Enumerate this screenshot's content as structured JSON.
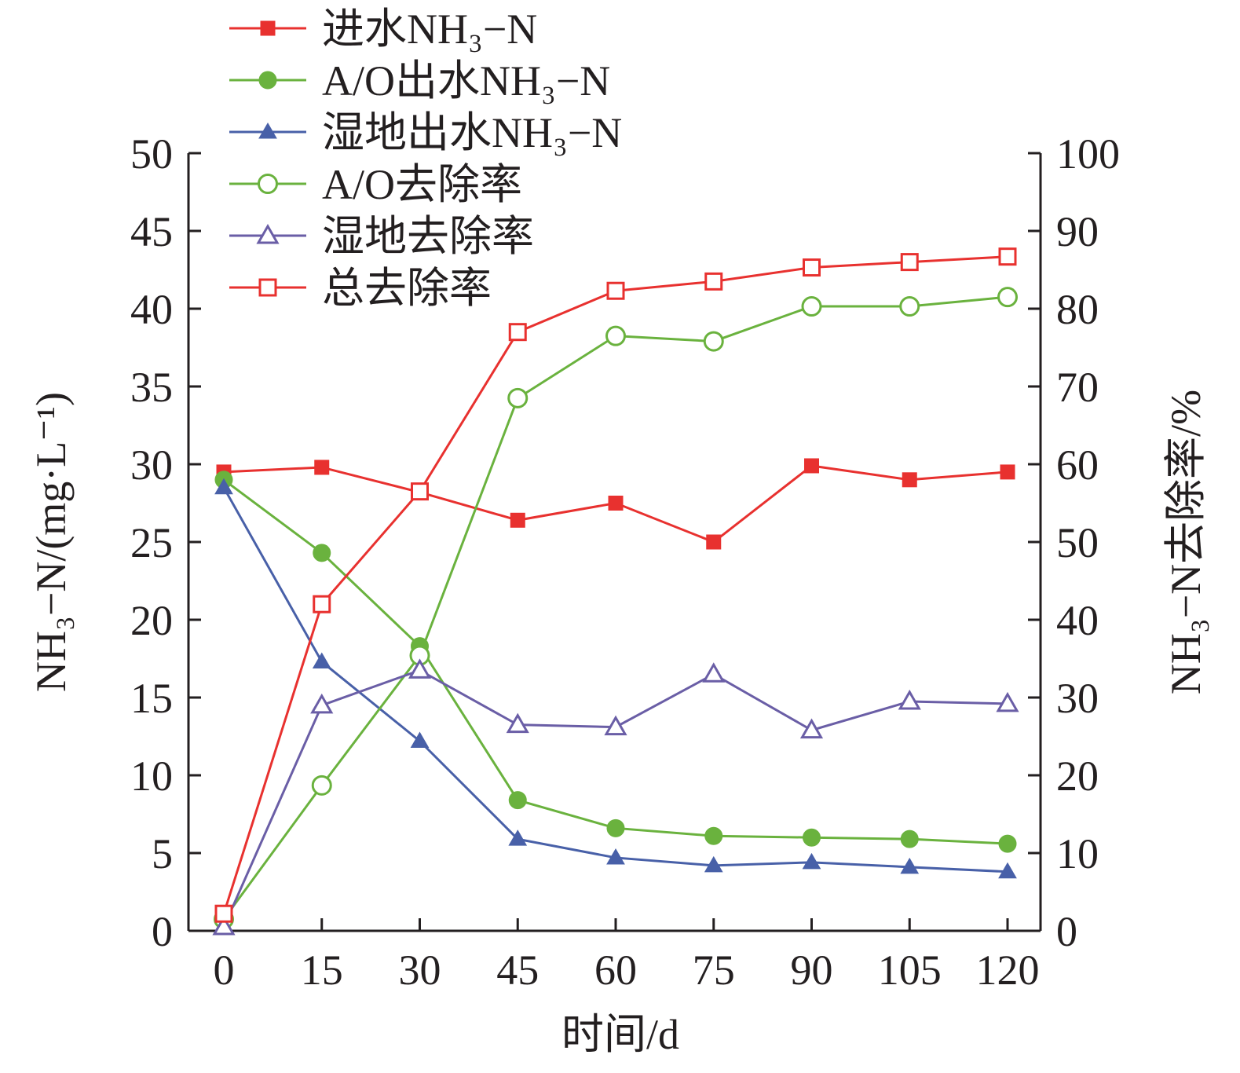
{
  "chart_data": {
    "type": "line",
    "x_label": "时间/d",
    "y_left_label": "NH₃−N/(mg·L⁻¹)",
    "y_right_label": "NH₃−N去除率/%",
    "x": [
      0,
      15,
      30,
      45,
      60,
      75,
      90,
      105,
      120
    ],
    "x_ticks": [
      "0",
      "15",
      "30",
      "45",
      "60",
      "75",
      "90",
      "105",
      "120"
    ],
    "y_left_range": [
      0,
      50
    ],
    "y_left_ticks": [
      "0",
      "5",
      "10",
      "15",
      "20",
      "25",
      "30",
      "35",
      "40",
      "45",
      "50"
    ],
    "y_right_range": [
      0,
      100
    ],
    "y_right_ticks": [
      "0",
      "10",
      "20",
      "30",
      "40",
      "50",
      "60",
      "70",
      "80",
      "90",
      "100"
    ],
    "grid": false,
    "legend_position": "top-left",
    "series": [
      {
        "name": "进水NH₃−N",
        "axis": "left",
        "color": "#e8312f",
        "marker": "square-filled",
        "values": [
          29.5,
          29.8,
          28.2,
          26.4,
          27.5,
          25.0,
          29.9,
          29.0,
          29.5
        ]
      },
      {
        "name": "A/O出水NH₃−N",
        "axis": "left",
        "color": "#6ab23e",
        "marker": "circle-filled",
        "values": [
          29.0,
          24.3,
          18.3,
          8.4,
          6.6,
          6.1,
          6.0,
          5.9,
          5.6
        ]
      },
      {
        "name": "湿地出水NH₃−N",
        "axis": "left",
        "color": "#4860a8",
        "marker": "triangle-filled",
        "values": [
          28.5,
          17.3,
          12.2,
          5.9,
          4.7,
          4.2,
          4.4,
          4.1,
          3.8
        ]
      },
      {
        "name": "A/O去除率",
        "axis": "right",
        "color": "#6ab23e",
        "marker": "circle-open",
        "values": [
          1.5,
          18.7,
          35.4,
          68.5,
          76.5,
          75.8,
          80.3,
          80.3,
          81.5
        ]
      },
      {
        "name": "湿地去除率",
        "axis": "right",
        "color": "#6a5ea6",
        "marker": "triangle-open",
        "values": [
          0.5,
          29.0,
          33.5,
          26.5,
          26.2,
          33.0,
          25.8,
          29.5,
          29.2
        ]
      },
      {
        "name": "总去除率",
        "axis": "right",
        "color": "#e8312f",
        "marker": "square-open",
        "values": [
          2.2,
          42.0,
          56.5,
          77.0,
          82.3,
          83.5,
          85.3,
          86.0,
          86.7
        ]
      }
    ]
  }
}
